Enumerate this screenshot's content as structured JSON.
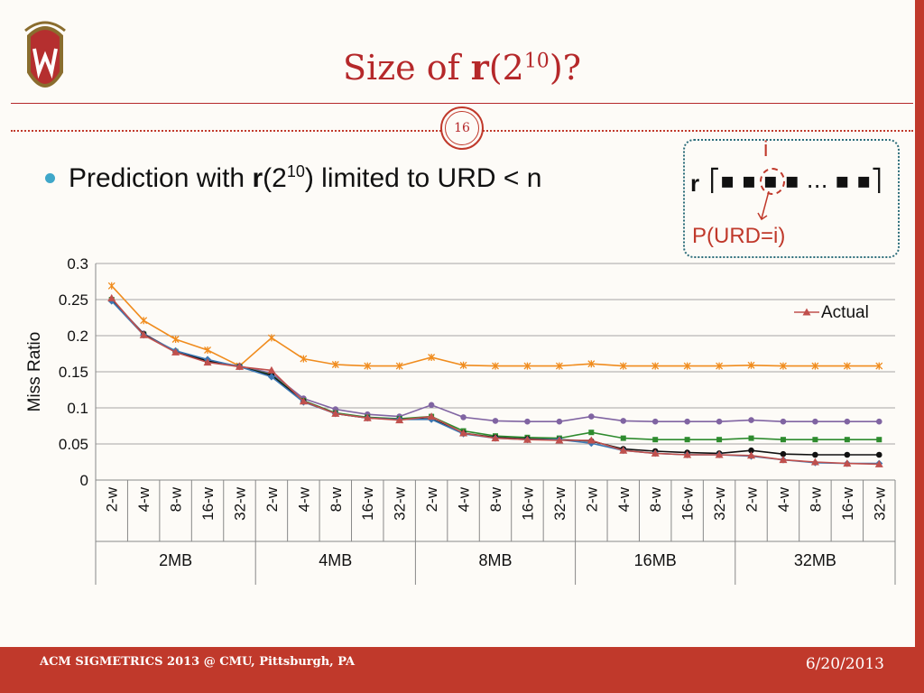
{
  "slide": {
    "title_prefix": "Size of ",
    "title_bold": "r",
    "title_open": "(2",
    "title_sup": "10",
    "title_close": ")?",
    "slide_number": "16",
    "bullet_prefix": "Prediction with ",
    "bullet_bold": "r",
    "bullet_open": "(2",
    "bullet_sup": "10",
    "bullet_close": ") limited to URD < n",
    "footer_left": "ACM SIGMETRICS 2013 @ CMU, Pittsburgh, PA",
    "footer_right": "6/20/2013",
    "accent": "#c0392b"
  },
  "callout": {
    "index_label": "i",
    "vector_label": "r",
    "vector_body": "▪ ▪ ▪ ▪ … ▪ ▪",
    "prob_label": "P(URD=i)"
  },
  "chart_data": {
    "type": "line",
    "ylabel": "Miss Ratio",
    "ylim": [
      0,
      0.3
    ],
    "yticks": [
      "0",
      "0.05",
      "0.1",
      "0.15",
      "0.2",
      "0.25",
      "0.3"
    ],
    "grid": true,
    "legend_position": "top-right",
    "groups": [
      "2MB",
      "4MB",
      "8MB",
      "16MB",
      "32MB"
    ],
    "subcategories": [
      "2-w",
      "4-w",
      "8-w",
      "16-w",
      "32-w"
    ],
    "series": [
      {
        "name": "",
        "color": "#f08c1e",
        "marker": "x",
        "values": [
          0.269,
          0.221,
          0.195,
          0.18,
          0.158,
          0.197,
          0.168,
          0.16,
          0.158,
          0.158,
          0.17,
          0.159,
          0.158,
          0.158,
          0.158,
          0.161,
          0.158,
          0.158,
          0.158,
          0.158,
          0.159,
          0.158,
          0.158,
          0.158,
          0.158
        ]
      },
      {
        "name": "",
        "color": "#8064a2",
        "marker": "circle",
        "values": [
          0.25,
          0.203,
          0.178,
          0.165,
          0.158,
          0.148,
          0.113,
          0.098,
          0.091,
          0.088,
          0.104,
          0.087,
          0.082,
          0.081,
          0.081,
          0.088,
          0.082,
          0.081,
          0.081,
          0.081,
          0.083,
          0.081,
          0.081,
          0.081,
          0.081
        ]
      },
      {
        "name": "",
        "color": "#2e8b2e",
        "marker": "square",
        "values": [
          0.25,
          0.202,
          0.178,
          0.165,
          0.157,
          0.146,
          0.11,
          0.093,
          0.087,
          0.085,
          0.088,
          0.068,
          0.061,
          0.059,
          0.058,
          0.066,
          0.058,
          0.056,
          0.056,
          0.056,
          0.058,
          0.056,
          0.056,
          0.056,
          0.056
        ]
      },
      {
        "name": "",
        "color": "#111111",
        "marker": "circle",
        "values": [
          0.249,
          0.202,
          0.178,
          0.165,
          0.157,
          0.145,
          0.109,
          0.092,
          0.086,
          0.084,
          0.085,
          0.065,
          0.059,
          0.057,
          0.056,
          0.054,
          0.043,
          0.04,
          0.038,
          0.037,
          0.041,
          0.036,
          0.035,
          0.035,
          0.035
        ]
      },
      {
        "name": "",
        "color": "#3c78b4",
        "marker": "diamond",
        "values": [
          0.248,
          0.201,
          0.179,
          0.167,
          0.157,
          0.143,
          0.108,
          0.092,
          0.086,
          0.084,
          0.084,
          0.064,
          0.058,
          0.056,
          0.056,
          0.051,
          0.041,
          0.037,
          0.035,
          0.035,
          0.033,
          0.028,
          0.024,
          0.023,
          0.023
        ]
      },
      {
        "name": "Actual",
        "color": "#c0504d",
        "marker": "triangle",
        "values": [
          0.252,
          0.201,
          0.177,
          0.163,
          0.157,
          0.152,
          0.109,
          0.092,
          0.086,
          0.083,
          0.088,
          0.065,
          0.058,
          0.056,
          0.055,
          0.055,
          0.041,
          0.037,
          0.035,
          0.035,
          0.034,
          0.028,
          0.025,
          0.023,
          0.022
        ]
      }
    ]
  }
}
